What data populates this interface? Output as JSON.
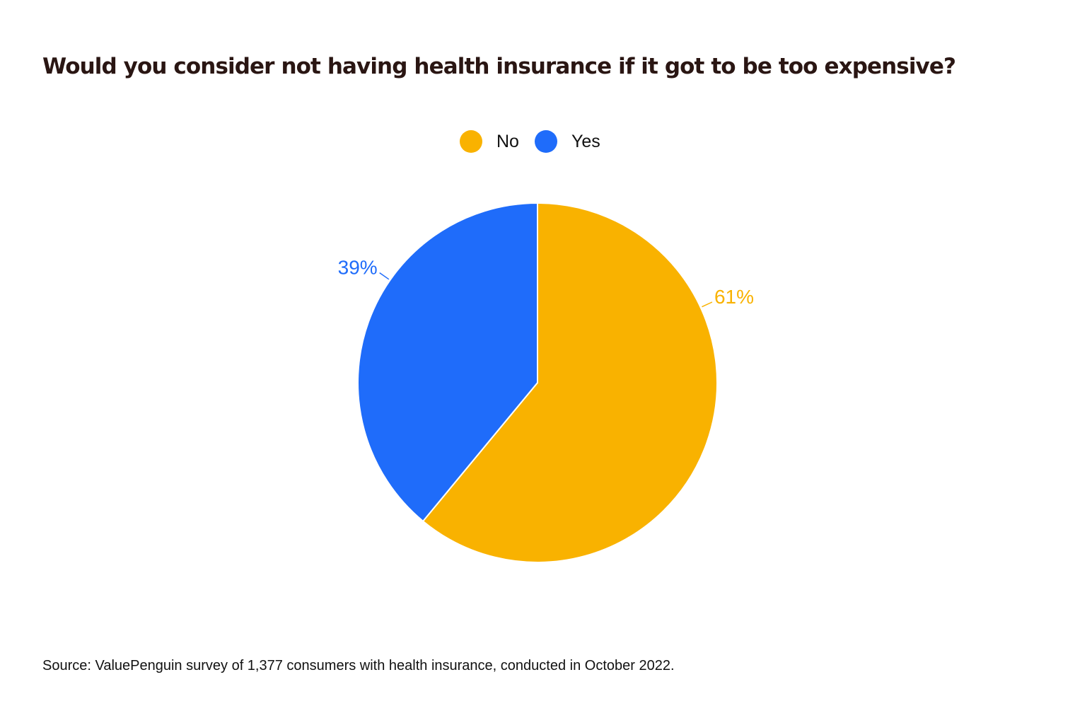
{
  "chart_data": {
    "type": "pie",
    "title": "Would you consider not having health insurance if it got to be too expensive?",
    "categories": [
      "No",
      "Yes"
    ],
    "values": [
      61,
      39
    ],
    "data_labels": [
      "61%",
      "39%"
    ],
    "colors": [
      "#F9B200",
      "#1F6CFA"
    ],
    "legend": {
      "placement": "top-center",
      "entries": [
        "No",
        "Yes"
      ]
    },
    "start_angle_deg": 0,
    "direction": "clockwise"
  },
  "footer": {
    "source": "Source: ValuePenguin survey of 1,377 consumers with health insurance, conducted in October 2022."
  },
  "colors": {
    "title": "#2a1613",
    "text": "#111111",
    "background": "#ffffff",
    "slice_border": "#ffffff"
  }
}
